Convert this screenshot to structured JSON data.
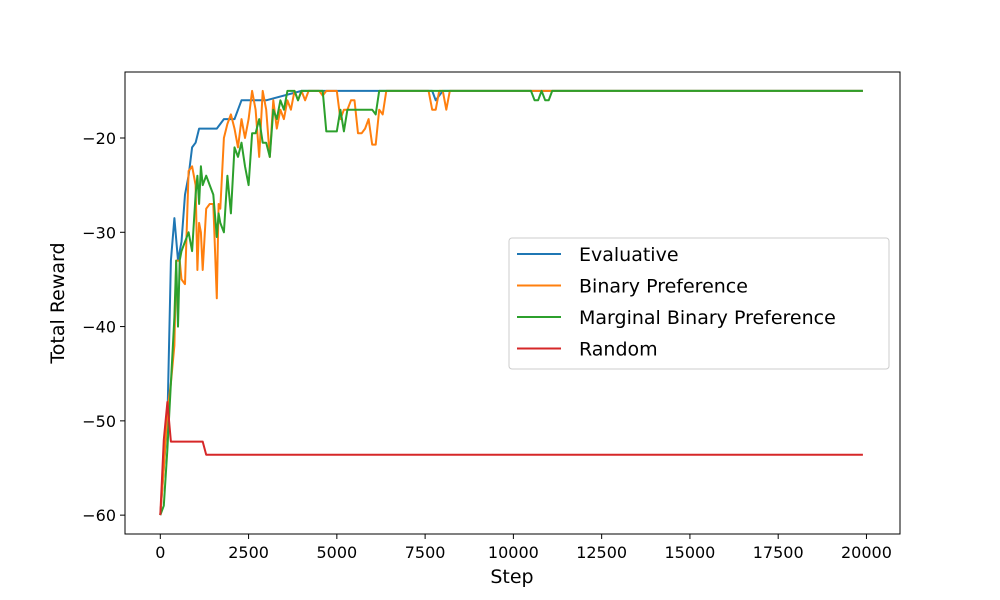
{
  "chart_data": {
    "type": "line",
    "title": "",
    "xlabel": "Step",
    "ylabel": "Total Reward",
    "xlim": [
      -1000,
      20950
    ],
    "ylim": [
      -62,
      -13
    ],
    "xticks": [
      0,
      2500,
      5000,
      7500,
      10000,
      12500,
      15000,
      17500,
      20000
    ],
    "xtick_labels": [
      "0",
      "2500",
      "5000",
      "7500",
      "10000",
      "12500",
      "15000",
      "17500",
      "20000"
    ],
    "yticks": [
      -60,
      -50,
      -40,
      -30,
      -20
    ],
    "ytick_labels": [
      "−60",
      "−50",
      "−40",
      "−30",
      "−20"
    ],
    "grid": false,
    "legend_position": "center-right",
    "series": [
      {
        "name": "Evaluative",
        "color": "#1f77b4",
        "x": [
          0,
          100,
          200,
          300,
          400,
          500,
          600,
          700,
          800,
          900,
          1000,
          1100,
          1200,
          1400,
          1600,
          1800,
          2000,
          2100,
          2200,
          2300,
          2500,
          3000,
          4000,
          6000,
          6500,
          7500,
          7700,
          7800,
          8000,
          19900
        ],
        "y": [
          -60,
          -55,
          -50,
          -33,
          -28.5,
          -33,
          -31,
          -26,
          -24,
          -21,
          -20.5,
          -19,
          -19,
          -19,
          -19,
          -18,
          -18,
          -18,
          -17,
          -16,
          -16,
          -16,
          -15,
          -15,
          -15,
          -15,
          -15,
          -16,
          -15,
          -15
        ]
      },
      {
        "name": "Binary Preference",
        "color": "#ff7f0e",
        "x": [
          0,
          100,
          200,
          300,
          400,
          450,
          500,
          550,
          600,
          700,
          800,
          900,
          1000,
          1050,
          1100,
          1150,
          1200,
          1300,
          1400,
          1500,
          1600,
          1650,
          1700,
          1800,
          1900,
          2000,
          2100,
          2200,
          2300,
          2400,
          2500,
          2600,
          2700,
          2800,
          2900,
          3000,
          3100,
          3200,
          3300,
          3400,
          3500,
          3600,
          3700,
          3800,
          3900,
          4000,
          4100,
          4200,
          4300,
          4400,
          4500,
          4600,
          4700,
          4800,
          4900,
          5000,
          5100,
          5200,
          5300,
          5400,
          5500,
          5600,
          5700,
          5800,
          5900,
          6000,
          6100,
          6200,
          6300,
          6400,
          6500,
          7500,
          7600,
          7700,
          7800,
          7900,
          8000,
          8100,
          8200,
          10500,
          10600,
          10700,
          11000,
          11100,
          11200,
          19900
        ],
        "y": [
          -60,
          -55,
          -49,
          -46,
          -42,
          -33,
          -33,
          -33,
          -35,
          -35.5,
          -23.5,
          -23,
          -25,
          -34,
          -29,
          -30,
          -34,
          -27.5,
          -27,
          -27,
          -37,
          -27,
          -27.5,
          -20,
          -18.5,
          -17.5,
          -19,
          -21,
          -18,
          -20,
          -18,
          -15,
          -17,
          -22,
          -15,
          -17,
          -22,
          -16,
          -19,
          -17,
          -18,
          -16,
          -17,
          -15,
          -16,
          -15,
          -16,
          -15,
          -15,
          -15,
          -15,
          -15.5,
          -15,
          -15,
          -15,
          -15,
          -18,
          -17,
          -17,
          -16,
          -16,
          -19.5,
          -19.5,
          -19,
          -18,
          -20.7,
          -20.7,
          -17,
          -17.5,
          -15,
          -15,
          -15,
          -15,
          -17,
          -17,
          -15,
          -15,
          -17,
          -15,
          -15,
          -15,
          -15,
          -15,
          -15,
          -15,
          -15
        ]
      },
      {
        "name": "Marginal Binary Preference",
        "color": "#2ca02c",
        "x": [
          0,
          100,
          200,
          300,
          400,
          450,
          500,
          550,
          600,
          700,
          800,
          900,
          1000,
          1050,
          1100,
          1150,
          1200,
          1300,
          1400,
          1500,
          1600,
          1650,
          1700,
          1800,
          1900,
          2000,
          2100,
          2200,
          2300,
          2400,
          2500,
          2600,
          2700,
          2800,
          2900,
          3000,
          3100,
          3200,
          3300,
          3400,
          3500,
          3600,
          3700,
          3800,
          3900,
          4000,
          4100,
          4200,
          4300,
          4400,
          4500,
          4600,
          4700,
          4800,
          4900,
          5000,
          5100,
          5200,
          5300,
          5400,
          5500,
          5600,
          5700,
          5800,
          5900,
          6000,
          6100,
          6200,
          6300,
          6400,
          6500,
          10500,
          10600,
          10700,
          10800,
          10900,
          11000,
          11100,
          11200,
          11300,
          19900
        ],
        "y": [
          -60,
          -59,
          -53,
          -46,
          -39,
          -33,
          -40,
          -33,
          -32,
          -31,
          -30,
          -32,
          -26,
          -24,
          -27,
          -23,
          -25,
          -24,
          -25,
          -26,
          -30.5,
          -28,
          -29,
          -30,
          -24,
          -28,
          -21,
          -22,
          -20.5,
          -23,
          -25,
          -19.5,
          -19.5,
          -18,
          -20.5,
          -20.5,
          -22,
          -17,
          -18,
          -16,
          -17,
          -15,
          -15,
          -15,
          -16,
          -15,
          -15,
          -15,
          -15,
          -15,
          -15,
          -15,
          -19.3,
          -19.3,
          -19.3,
          -19.3,
          -17,
          -19.3,
          -17,
          -17,
          -17,
          -17,
          -17,
          -17,
          -17,
          -17,
          -17.5,
          -15,
          -15,
          -15,
          -15,
          -15,
          -16,
          -16,
          -15,
          -16,
          -16,
          -15,
          -15,
          -15,
          -15
        ]
      },
      {
        "name": "Random",
        "color": "#d62728",
        "x": [
          0,
          100,
          200,
          300,
          1200,
          1300,
          19900
        ],
        "y": [
          -60,
          -52,
          -48,
          -52.2,
          -52.2,
          -53.6,
          -53.6
        ]
      }
    ]
  }
}
